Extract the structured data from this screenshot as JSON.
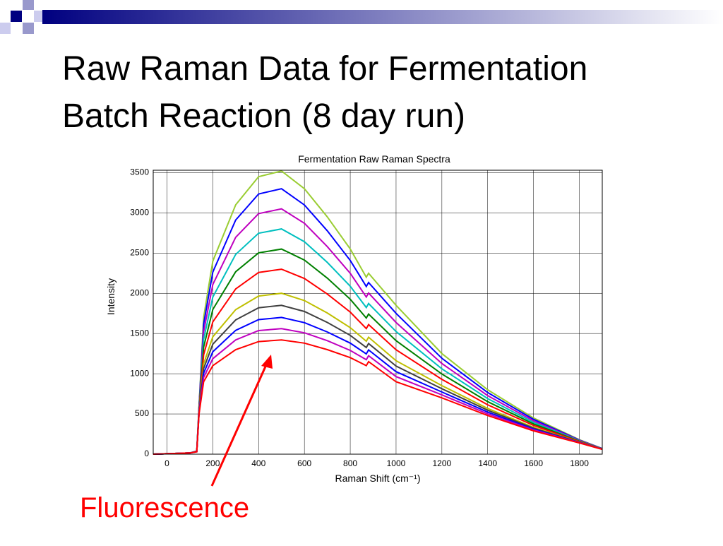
{
  "chart_data": {
    "type": "line",
    "slide_title": [
      "Raw Raman Data for Fermentation",
      "Batch Reaction (8 day run)"
    ],
    "title": "Fermentation Raw Raman Spectra",
    "xlabel": "Raman Shift (cm⁻¹)",
    "ylabel": "Intensity",
    "annotation": "Fluorescence",
    "xlim": [
      -60,
      1900
    ],
    "ylim": [
      0,
      3530
    ],
    "xticks": [
      0,
      200,
      400,
      600,
      800,
      1000,
      1200,
      1400,
      1600,
      1800
    ],
    "yticks": [
      0,
      500,
      1000,
      1500,
      2000,
      2500,
      3000,
      3500
    ],
    "grid": true,
    "x": [
      -60,
      0,
      100,
      130,
      140,
      160,
      200,
      300,
      400,
      500,
      600,
      700,
      800,
      870,
      880,
      1000,
      1200,
      1400,
      1600,
      1800,
      1900
    ],
    "series": [
      {
        "color": "#9acd32",
        "values": [
          0,
          5,
          15,
          40,
          600,
          1700,
          2400,
          3100,
          3450,
          3520,
          3300,
          2950,
          2550,
          2200,
          2250,
          1850,
          1250,
          800,
          450,
          180,
          70
        ]
      },
      {
        "color": "#0000ff",
        "values": [
          0,
          5,
          15,
          39,
          590,
          1616,
          2264,
          2911,
          3235,
          3300,
          3098,
          2777,
          2408,
          2085,
          2135,
          1750,
          1192,
          766,
          433,
          176,
          69
        ]
      },
      {
        "color": "#bf00bf",
        "values": [
          0,
          5,
          15,
          38,
          578,
          1521,
          2109,
          2697,
          2991,
          3050,
          2870,
          2580,
          2248,
          1954,
          2004,
          1637,
          1127,
          728,
          414,
          171,
          68
        ]
      },
      {
        "color": "#00bfbf",
        "values": [
          0,
          5,
          15,
          37,
          566,
          1426,
          1954,
          2483,
          2747,
          2800,
          2641,
          2384,
          2087,
          1823,
          1873,
          1524,
          1061,
          690,
          395,
          166,
          67
        ]
      },
      {
        "color": "#008000",
        "values": [
          0,
          5,
          15,
          35,
          554,
          1330,
          1799,
          2268,
          2503,
          2550,
          2413,
          2188,
          1926,
          1692,
          1742,
          1411,
          996,
          652,
          376,
          162,
          65
        ]
      },
      {
        "color": "#ff0000",
        "values": [
          0,
          5,
          15,
          34,
          542,
          1235,
          1645,
          2054,
          2259,
          2300,
          2184,
          1991,
          1766,
          1561,
          1611,
          1298,
          930,
          614,
          357,
          157,
          64
        ]
      },
      {
        "color": "#bfbf00",
        "values": [
          0,
          5,
          15,
          33,
          528,
          1121,
          1459,
          1797,
          1966,
          2000,
          1910,
          1755,
          1573,
          1404,
          1454,
          1162,
          852,
          568,
          334,
          151,
          63
        ]
      },
      {
        "color": "#404040",
        "values": [
          0,
          5,
          15,
          32,
          521,
          1064,
          1367,
          1669,
          1820,
          1850,
          1774,
          1638,
          1477,
          1326,
          1376,
          1095,
          813,
          546,
          323,
          148,
          62
        ]
      },
      {
        "color": "#0000ff",
        "values": [
          0,
          5,
          15,
          31,
          513,
          1006,
          1273,
          1539,
          1673,
          1700,
          1635,
          1519,
          1380,
          1246,
          1296,
          1026,
          773,
          523,
          311,
          145,
          61
        ]
      },
      {
        "color": "#bf00bf",
        "values": [
          0,
          5,
          15,
          31,
          507,
          954,
          1187,
          1421,
          1537,
          1560,
          1509,
          1411,
          1290,
          1174,
          1224,
          964,
          737,
          501,
          301,
          143,
          61
        ]
      },
      {
        "color": "#ff0000",
        "values": [
          0,
          5,
          15,
          30,
          500,
          900,
          1100,
          1300,
          1400,
          1420,
          1380,
          1300,
          1200,
          1100,
          1150,
          900,
          700,
          480,
          290,
          140,
          60
        ]
      }
    ]
  }
}
